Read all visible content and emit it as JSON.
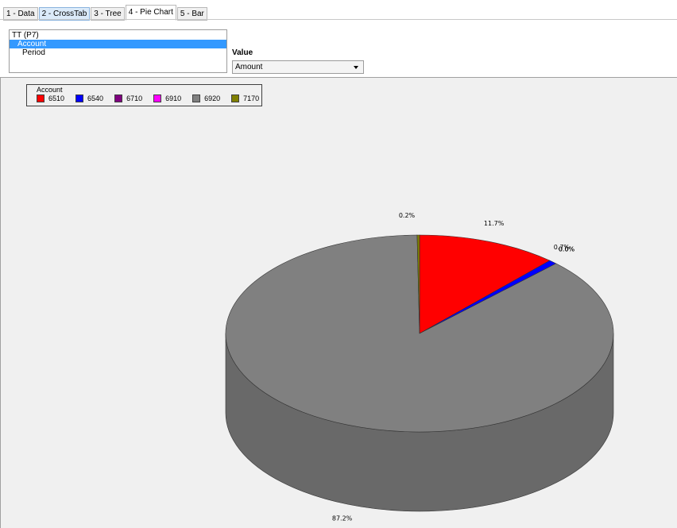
{
  "tabs": [
    {
      "label": "1 - Data"
    },
    {
      "label": "2 - CrossTab"
    },
    {
      "label": "3 - Tree"
    },
    {
      "label": "4 - Pie Chart"
    },
    {
      "label": "5 - Bar"
    }
  ],
  "field_list": {
    "header": "TT (P7)",
    "items": [
      "Account",
      "Period"
    ]
  },
  "value_selector": {
    "label": "Value",
    "selected": "Amount"
  },
  "legend": {
    "title": "Account"
  },
  "chart_data": {
    "type": "pie",
    "title": "",
    "categories": [
      "6510",
      "6540",
      "6710",
      "6910",
      "6920",
      "7170"
    ],
    "values": [
      11.7,
      0.7,
      0.0,
      0.0,
      87.2,
      0.2
    ],
    "colors": [
      "#ff0000",
      "#0000ff",
      "#800080",
      "#ff00ff",
      "#808080",
      "#808000"
    ],
    "labels": [
      "11.7%",
      "0.7%",
      "0.0%",
      "0.0%",
      "87.2%",
      "0.2%"
    ],
    "legend_position": "top-left",
    "style": "3d"
  }
}
